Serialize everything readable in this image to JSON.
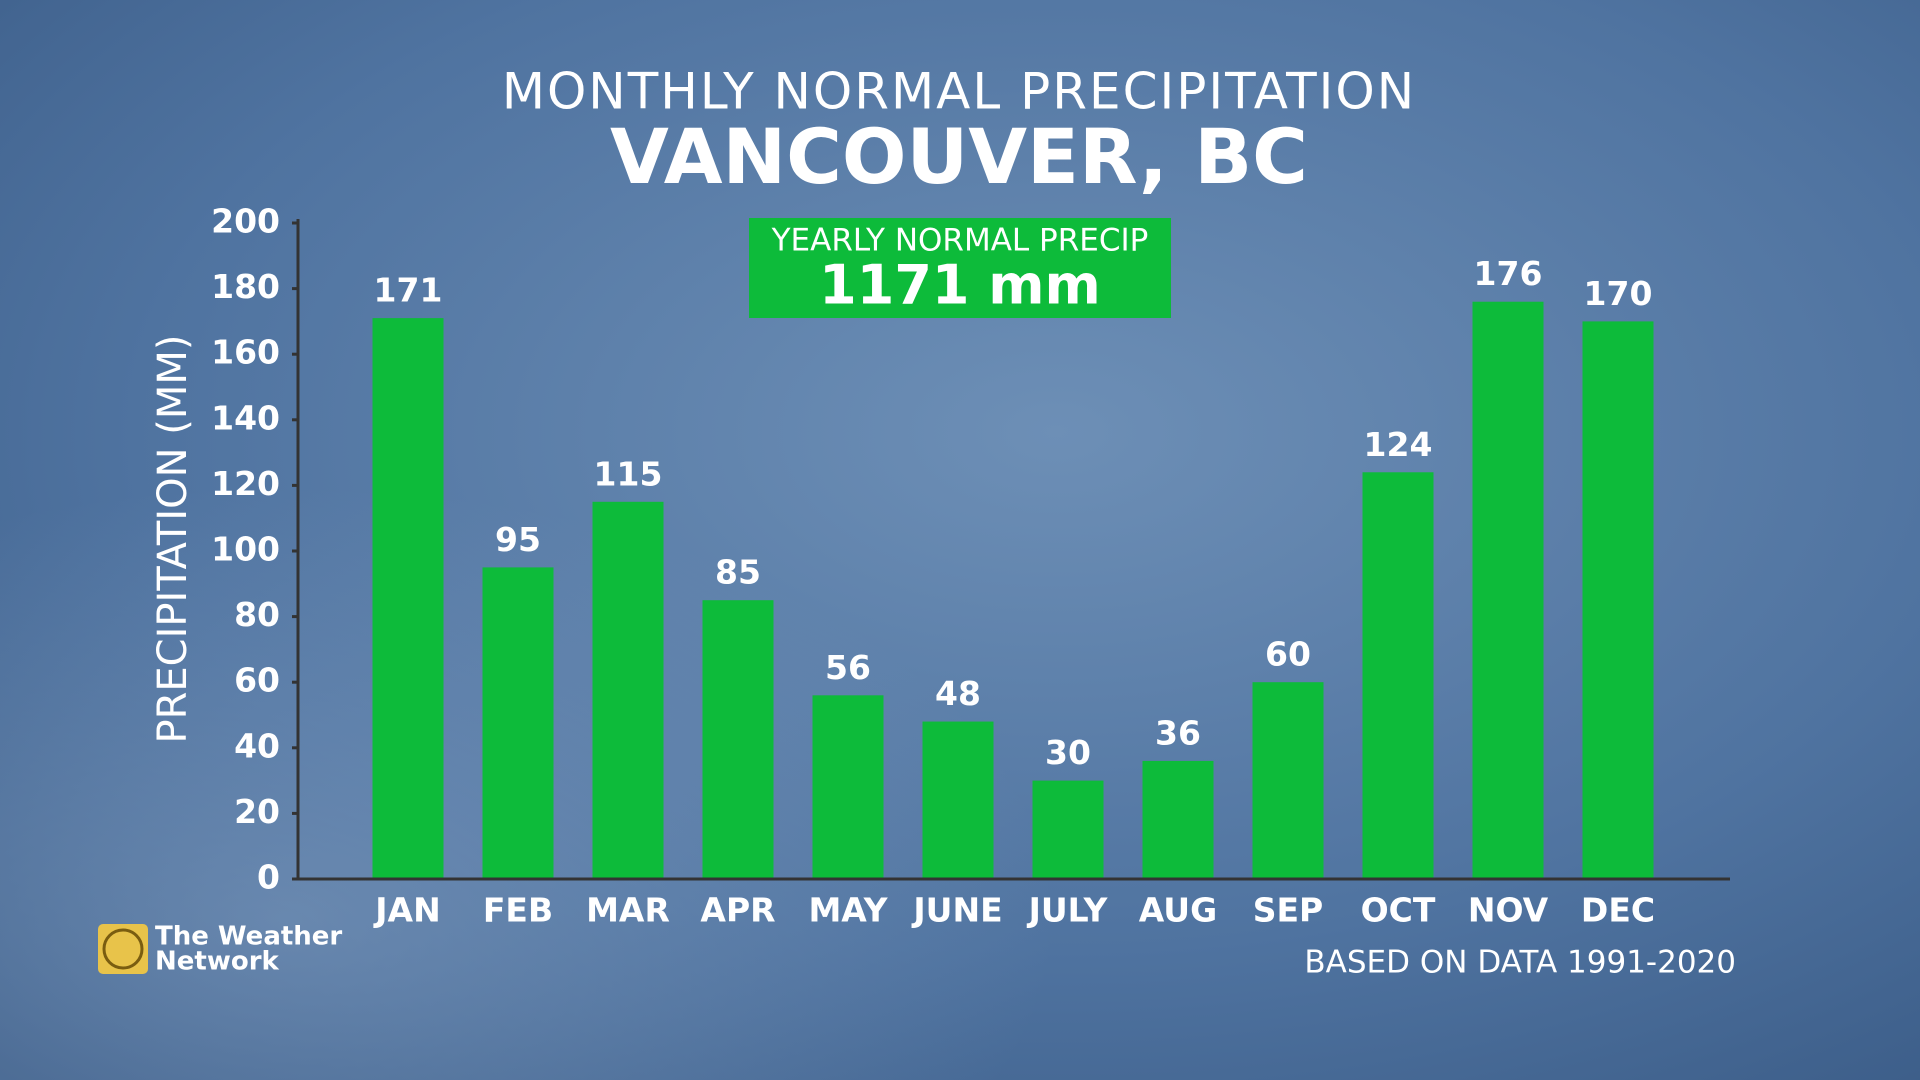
{
  "chart_data": {
    "type": "bar",
    "subtitle": "MONTHLY NORMAL PRECIPITATION",
    "title": "VANCOUVER, BC",
    "annotation": {
      "label": "YEARLY NORMAL PRECIP",
      "value": "1171 mm"
    },
    "y_label": "PRECIPITATION (MM)",
    "footnote": "BASED ON DATA 1991-2020",
    "categories": [
      "JAN",
      "FEB",
      "MAR",
      "APR",
      "MAY",
      "JUNE",
      "JULY",
      "AUG",
      "SEP",
      "OCT",
      "NOV",
      "DEC"
    ],
    "values": [
      171,
      95,
      115,
      85,
      56,
      48,
      30,
      36,
      60,
      124,
      176,
      170
    ],
    "color": "#0dbb3a",
    "ylim": [
      0,
      200
    ],
    "yticks": [
      0,
      20,
      40,
      60,
      80,
      100,
      120,
      140,
      160,
      180,
      200
    ],
    "grid": false
  },
  "logo": [
    "The Weather",
    "Network"
  ]
}
